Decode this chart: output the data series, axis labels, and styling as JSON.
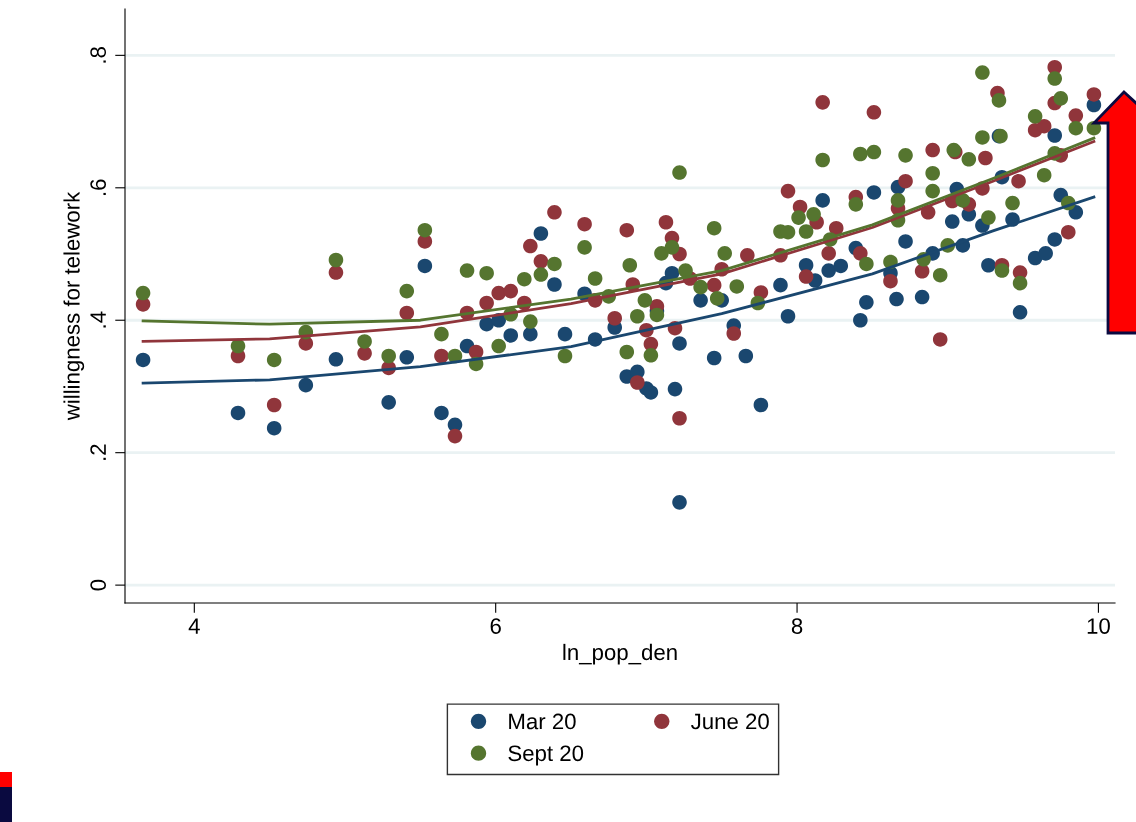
{
  "chart_data": {
    "type": "scatter",
    "xlabel": "ln_pop_den",
    "ylabel": "willingness for telework",
    "xlim": [
      3.54,
      10.11
    ],
    "ylim": [
      -0.027,
      0.87
    ],
    "xticks": [
      4,
      6,
      8,
      10
    ],
    "yticks": [
      {
        "value": 0,
        "label": "0"
      },
      {
        "value": 0.2,
        "label": ".2"
      },
      {
        "value": 0.4,
        "label": ".4"
      },
      {
        "value": 0.6,
        "label": ".6"
      },
      {
        "value": 0.8,
        "label": ".8"
      }
    ],
    "grid": "y",
    "legend": "bottom",
    "series": [
      {
        "name": "Mar 20",
        "marker": "circle",
        "color": "#1a476f",
        "x": [
          3.66,
          4.29,
          4.53,
          4.74,
          4.94,
          5.29,
          5.41,
          5.53,
          5.64,
          5.73,
          5.81,
          5.94,
          6.02,
          6.1,
          6.23,
          6.3,
          6.39,
          6.46,
          6.59,
          6.66,
          6.79,
          6.87,
          6.94,
          7.0,
          7.03,
          7.07,
          7.13,
          7.17,
          7.19,
          7.22,
          7.22,
          7.36,
          7.45,
          7.5,
          7.58,
          7.66,
          7.76,
          7.89,
          7.94,
          8.06,
          8.12,
          8.17,
          8.21,
          8.29,
          8.39,
          8.42,
          8.46,
          8.51,
          8.62,
          8.66,
          8.67,
          8.72,
          8.83,
          8.9,
          9.03,
          9.06,
          9.1,
          9.14,
          9.23,
          9.27,
          9.34,
          9.36,
          9.43,
          9.48,
          9.58,
          9.65,
          9.71,
          9.71,
          9.75,
          9.85,
          9.97
        ],
        "values": [
          0.34,
          0.26,
          0.237,
          0.302,
          0.341,
          0.276,
          0.344,
          0.482,
          0.26,
          0.242,
          0.361,
          0.394,
          0.4,
          0.377,
          0.379,
          0.531,
          0.454,
          0.379,
          0.44,
          0.371,
          0.389,
          0.315,
          0.322,
          0.297,
          0.291,
          0.414,
          0.456,
          0.471,
          0.296,
          0.365,
          0.125,
          0.43,
          0.343,
          0.43,
          0.392,
          0.346,
          0.272,
          0.453,
          0.406,
          0.483,
          0.46,
          0.581,
          0.475,
          0.482,
          0.509,
          0.4,
          0.427,
          0.593,
          0.471,
          0.432,
          0.601,
          0.519,
          0.435,
          0.501,
          0.549,
          0.598,
          0.513,
          0.56,
          0.543,
          0.483,
          0.678,
          0.616,
          0.552,
          0.412,
          0.494,
          0.501,
          0.522,
          0.679,
          0.589,
          0.563,
          0.725
        ]
      },
      {
        "name": "June 20",
        "marker": "circle",
        "color": "#90353b",
        "x": [
          3.66,
          4.29,
          4.53,
          4.74,
          4.94,
          5.13,
          5.29,
          5.41,
          5.53,
          5.64,
          5.73,
          5.81,
          5.87,
          5.94,
          6.02,
          6.1,
          6.19,
          6.23,
          6.3,
          6.39,
          6.59,
          6.66,
          6.79,
          6.87,
          6.91,
          6.94,
          7.0,
          7.03,
          7.07,
          7.13,
          7.17,
          7.19,
          7.22,
          7.22,
          7.29,
          7.45,
          7.5,
          7.58,
          7.67,
          7.76,
          7.89,
          7.94,
          8.02,
          8.06,
          8.13,
          8.17,
          8.21,
          8.26,
          8.39,
          8.42,
          8.51,
          8.62,
          8.67,
          8.72,
          8.83,
          8.87,
          8.9,
          8.95,
          9.03,
          9.05,
          9.14,
          9.23,
          9.25,
          9.33,
          9.36,
          9.47,
          9.48,
          9.58,
          9.64,
          9.71,
          9.71,
          9.75,
          9.8,
          9.85,
          9.97
        ],
        "values": [
          0.424,
          0.346,
          0.272,
          0.365,
          0.472,
          0.35,
          0.328,
          0.411,
          0.519,
          0.346,
          0.225,
          0.411,
          0.352,
          0.426,
          0.441,
          0.444,
          0.426,
          0.512,
          0.489,
          0.563,
          0.545,
          0.43,
          0.403,
          0.536,
          0.454,
          0.306,
          0.385,
          0.364,
          0.421,
          0.548,
          0.524,
          0.388,
          0.5,
          0.252,
          0.463,
          0.453,
          0.477,
          0.38,
          0.498,
          0.442,
          0.498,
          0.595,
          0.571,
          0.466,
          0.548,
          0.729,
          0.501,
          0.539,
          0.586,
          0.501,
          0.714,
          0.459,
          0.569,
          0.61,
          0.474,
          0.563,
          0.657,
          0.371,
          0.58,
          0.654,
          0.575,
          0.599,
          0.645,
          0.743,
          0.483,
          0.61,
          0.472,
          0.687,
          0.693,
          0.782,
          0.728,
          0.649,
          0.533,
          0.709,
          0.741
        ]
      },
      {
        "name": "Sept 20",
        "marker": "circle",
        "color": "#55752f",
        "x": [
          3.66,
          4.29,
          4.53,
          4.74,
          4.94,
          5.13,
          5.29,
          5.41,
          5.53,
          5.64,
          5.73,
          5.81,
          5.87,
          5.94,
          6.02,
          6.1,
          6.19,
          6.23,
          6.3,
          6.39,
          6.46,
          6.59,
          6.66,
          6.75,
          6.87,
          6.89,
          6.94,
          6.99,
          7.03,
          7.07,
          7.1,
          7.17,
          7.22,
          7.26,
          7.36,
          7.45,
          7.47,
          7.52,
          7.6,
          7.74,
          7.89,
          7.94,
          8.01,
          8.06,
          8.11,
          8.17,
          8.22,
          8.39,
          8.42,
          8.46,
          8.51,
          8.62,
          8.67,
          8.67,
          8.72,
          8.84,
          8.9,
          8.9,
          8.95,
          9.0,
          9.04,
          9.1,
          9.14,
          9.23,
          9.23,
          9.27,
          9.34,
          9.35,
          9.36,
          9.43,
          9.48,
          9.58,
          9.64,
          9.71,
          9.71,
          9.75,
          9.8,
          9.85,
          9.97
        ],
        "values": [
          0.441,
          0.361,
          0.34,
          0.382,
          0.491,
          0.368,
          0.346,
          0.444,
          0.536,
          0.379,
          0.346,
          0.475,
          0.334,
          0.471,
          0.361,
          0.409,
          0.462,
          0.398,
          0.469,
          0.485,
          0.346,
          0.51,
          0.463,
          0.436,
          0.352,
          0.483,
          0.406,
          0.43,
          0.347,
          0.408,
          0.501,
          0.51,
          0.623,
          0.475,
          0.45,
          0.539,
          0.433,
          0.501,
          0.451,
          0.426,
          0.534,
          0.533,
          0.555,
          0.534,
          0.56,
          0.642,
          0.522,
          0.575,
          0.651,
          0.485,
          0.654,
          0.488,
          0.581,
          0.551,
          0.649,
          0.492,
          0.622,
          0.595,
          0.468,
          0.513,
          0.657,
          0.581,
          0.643,
          0.774,
          0.676,
          0.555,
          0.732,
          0.678,
          0.475,
          0.577,
          0.456,
          0.708,
          0.619,
          0.765,
          0.652,
          0.735,
          0.577,
          0.69,
          0.69
        ]
      },
      {
        "type": "line",
        "marker": "none",
        "color": "#1a476f",
        "x": [
          3.66,
          4.5,
          5.5,
          6.5,
          7.5,
          8.5,
          9.3,
          9.97
        ],
        "values": [
          0.305,
          0.31,
          0.33,
          0.36,
          0.41,
          0.47,
          0.535,
          0.586
        ]
      },
      {
        "type": "line",
        "marker": "none",
        "color": "#90353b",
        "x": [
          3.66,
          4.5,
          5.5,
          6.5,
          7.5,
          8.5,
          9.3,
          9.97
        ],
        "values": [
          0.368,
          0.372,
          0.39,
          0.425,
          0.47,
          0.54,
          0.61,
          0.67
        ]
      },
      {
        "type": "line",
        "marker": "none",
        "color": "#55752f",
        "x": [
          3.66,
          4.5,
          5.5,
          6.5,
          7.5,
          8.5,
          9.3,
          9.97
        ],
        "values": [
          0.399,
          0.394,
          0.4,
          0.432,
          0.475,
          0.544,
          0.614,
          0.675
        ]
      }
    ]
  }
}
